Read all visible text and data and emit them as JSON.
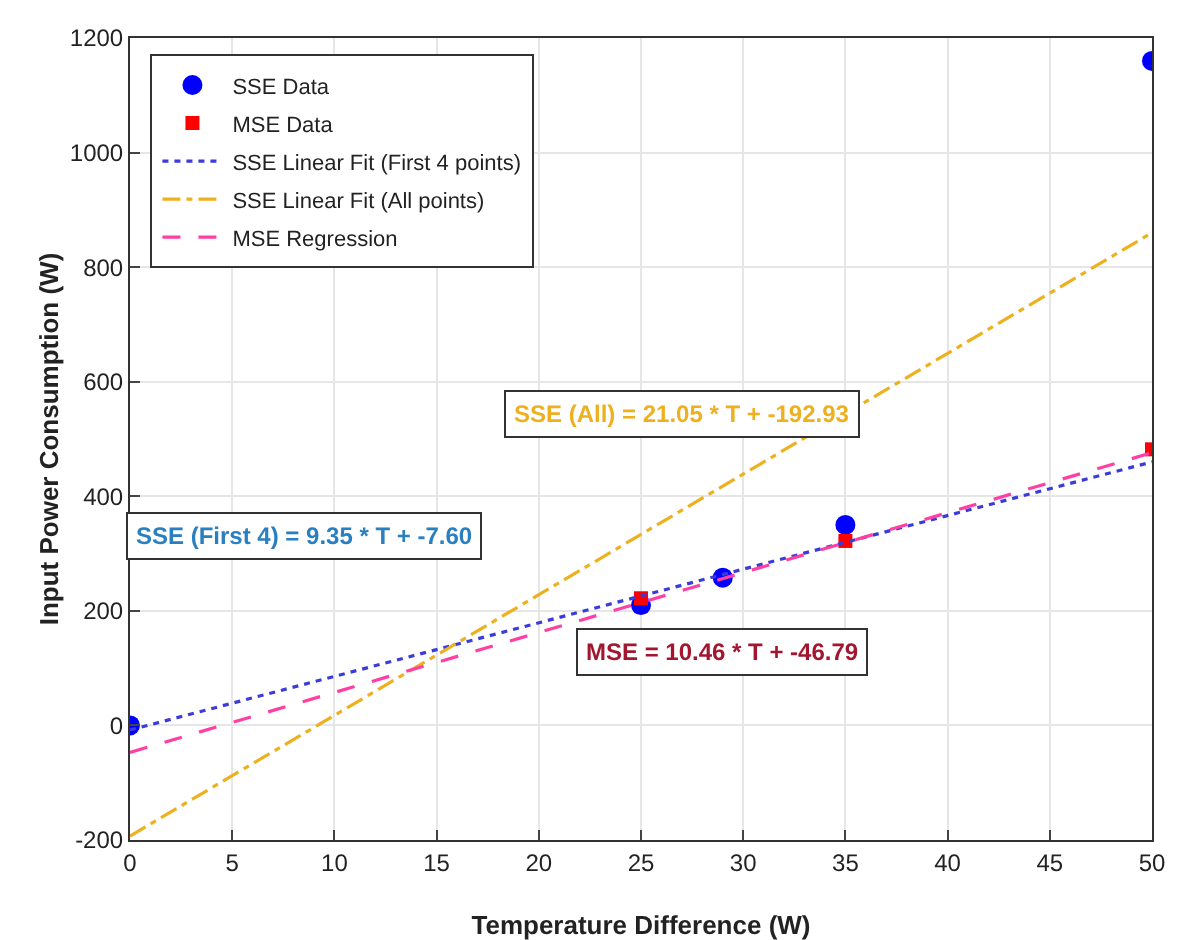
{
  "chart_data": {
    "type": "scatter",
    "xlabel": "Temperature Difference (W)",
    "ylabel": "Input Power Consumption (W)",
    "xlim": [
      0,
      50
    ],
    "xticks": [
      0,
      5,
      10,
      15,
      20,
      25,
      30,
      35,
      40,
      45,
      50
    ],
    "ylim": [
      -200,
      1200
    ],
    "yticks": [
      -200,
      0,
      200,
      400,
      600,
      800,
      1000,
      1200
    ],
    "grid": true,
    "legend": "top left",
    "series": [
      {
        "name": "SSE Data",
        "marker": "circle",
        "color": "#0000ff",
        "x": [
          0,
          25,
          29,
          35,
          50
        ],
        "values": [
          0,
          210,
          258,
          350,
          1160
        ]
      },
      {
        "name": "MSE Data",
        "marker": "square",
        "color": "#ff0000",
        "x": [
          25,
          35,
          50
        ],
        "values": [
          222,
          322,
          482
        ]
      },
      {
        "name": "SSE Linear Fit (First 4 points)",
        "type": "line",
        "marker": "none",
        "line_style": "dotted",
        "color": "#3b3bdb",
        "x": [
          0,
          50
        ],
        "values": [
          -8,
          460
        ]
      },
      {
        "name": "SSE Linear Fit (All points)",
        "type": "line",
        "marker": "none",
        "line_style": "dashdot",
        "color": "#edb120",
        "x": [
          0,
          50
        ],
        "values": [
          -193,
          860
        ]
      },
      {
        "name": "MSE Regression",
        "type": "line",
        "marker": "none",
        "line_style": "dashed",
        "color": "#ff3fa4",
        "x": [
          0,
          50
        ],
        "values": [
          -47,
          476
        ]
      }
    ],
    "annotations": [
      "SSE (All) = 21.05 * T + -192.93",
      "SSE (First 4) = 9.35 * T + -7.60",
      "MSE = 10.46 * T + -46.79"
    ]
  }
}
